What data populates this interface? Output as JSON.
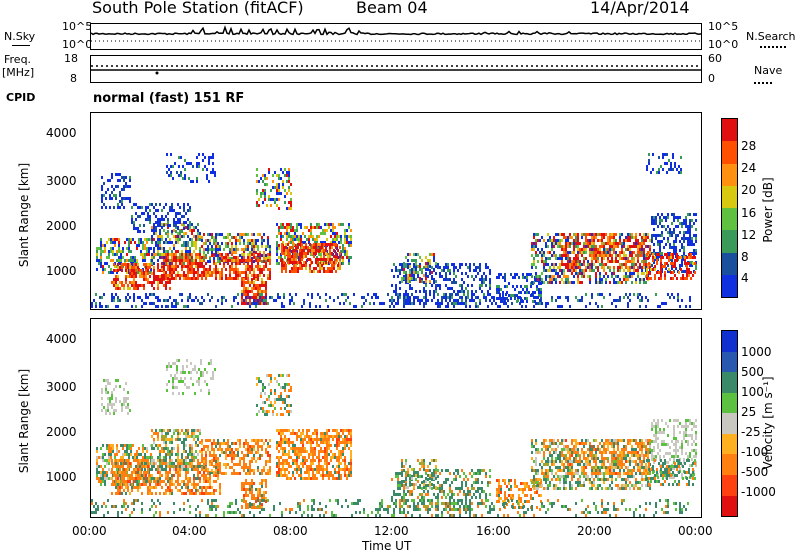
{
  "header": {
    "station": "South Pole Station (fitACF)",
    "beam": "Beam 04",
    "date": "14/Apr/2014"
  },
  "top_panels": {
    "nsky_label": "N.Sky",
    "nsearch_label": "N.Search",
    "nsky_ticks": [
      "10^5",
      "10^0"
    ],
    "freq_label_1": "Freq.",
    "freq_label_2": "[MHz]",
    "freq_ticks": [
      "18",
      "8"
    ],
    "nave_label": "Nave",
    "nave_ticks": [
      "60",
      "0"
    ],
    "cpid_label": "CPID",
    "cpid_text": "normal (fast) 151 RF"
  },
  "chart_data": [
    {
      "type": "heatmap",
      "title": "",
      "ylabel": "Slant Range [km]",
      "yticks": [
        "4000",
        "3000",
        "2000",
        "1000"
      ],
      "ylim": [
        180,
        4600
      ],
      "colorbar_label": "Power [dB]",
      "colorbar_ticks": [
        "28",
        "24",
        "20",
        "16",
        "12",
        "8",
        "4"
      ],
      "colorbar_colors": [
        "#1030e0",
        "#1a4f9e",
        "#3a9a5a",
        "#60c040",
        "#d8c810",
        "#ff9010",
        "#ff5000",
        "#e01010"
      ]
    },
    {
      "type": "heatmap",
      "title": "",
      "ylabel": "Slant Range [km]",
      "yticks": [
        "4000",
        "3000",
        "2000",
        "1000"
      ],
      "ylim": [
        180,
        4600
      ],
      "colorbar_label": "Velocity [m s⁻¹]",
      "colorbar_ticks": [
        "1000",
        "500",
        "100",
        "25",
        "-25",
        "-100",
        "-500",
        "-1000"
      ],
      "colorbar_colors": [
        "#1030d0",
        "#2858b0",
        "#3a8a6a",
        "#5cc040",
        "#c8c8c0",
        "#ffb020",
        "#ff8010",
        "#ff4010",
        "#e01010"
      ]
    }
  ],
  "x_axis": {
    "ticks": [
      "00:00",
      "04:00",
      "08:00",
      "12:00",
      "16:00",
      "20:00",
      "00:00"
    ],
    "label": "Time UT"
  },
  "colors": {
    "power": [
      "#1030e0",
      "#3a9a5a",
      "#d8c810",
      "#ff7010",
      "#e01010"
    ],
    "velocity_orange": "#ff8010",
    "velocity_green": "#3a8a6a",
    "velocity_grey": "#c8c8c0"
  }
}
